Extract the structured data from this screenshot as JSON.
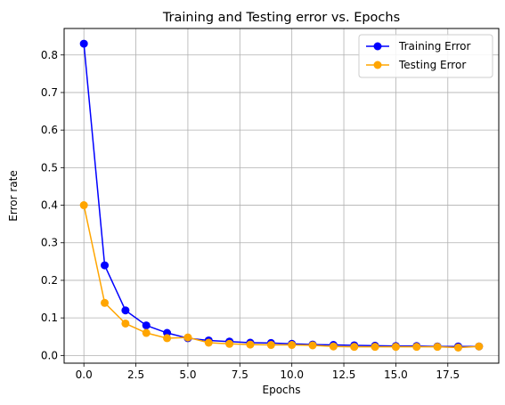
{
  "chart_data": {
    "type": "line",
    "title": "Training and Testing error vs. Epochs",
    "xlabel": "Epochs",
    "ylabel": "Error rate",
    "xlim": [
      -0.95,
      19.95
    ],
    "ylim": [
      -0.0205,
      0.8705
    ],
    "xticks": [
      0.0,
      2.5,
      5.0,
      7.5,
      10.0,
      12.5,
      15.0,
      17.5
    ],
    "xtick_labels": [
      "0.0",
      "2.5",
      "5.0",
      "7.5",
      "10.0",
      "12.5",
      "15.0",
      "17.5"
    ],
    "yticks": [
      0.0,
      0.1,
      0.2,
      0.3,
      0.4,
      0.5,
      0.6,
      0.7,
      0.8
    ],
    "ytick_labels": [
      "0.0",
      "0.1",
      "0.2",
      "0.3",
      "0.4",
      "0.5",
      "0.6",
      "0.7",
      "0.8"
    ],
    "grid": true,
    "legend": "top-right",
    "x": [
      0,
      1,
      2,
      3,
      4,
      5,
      6,
      7,
      8,
      9,
      10,
      11,
      12,
      13,
      14,
      15,
      16,
      17,
      18,
      19
    ],
    "series": [
      {
        "name": "Training Error",
        "color": "#0000ff",
        "values": [
          0.83,
          0.24,
          0.12,
          0.08,
          0.06,
          0.046,
          0.04,
          0.037,
          0.034,
          0.033,
          0.031,
          0.029,
          0.028,
          0.027,
          0.026,
          0.025,
          0.025,
          0.024,
          0.024,
          0.024
        ]
      },
      {
        "name": "Testing Error",
        "color": "#ffa500",
        "values": [
          0.4,
          0.14,
          0.085,
          0.06,
          0.046,
          0.048,
          0.034,
          0.031,
          0.029,
          0.028,
          0.028,
          0.027,
          0.024,
          0.023,
          0.023,
          0.023,
          0.023,
          0.023,
          0.021,
          0.024
        ]
      }
    ]
  }
}
